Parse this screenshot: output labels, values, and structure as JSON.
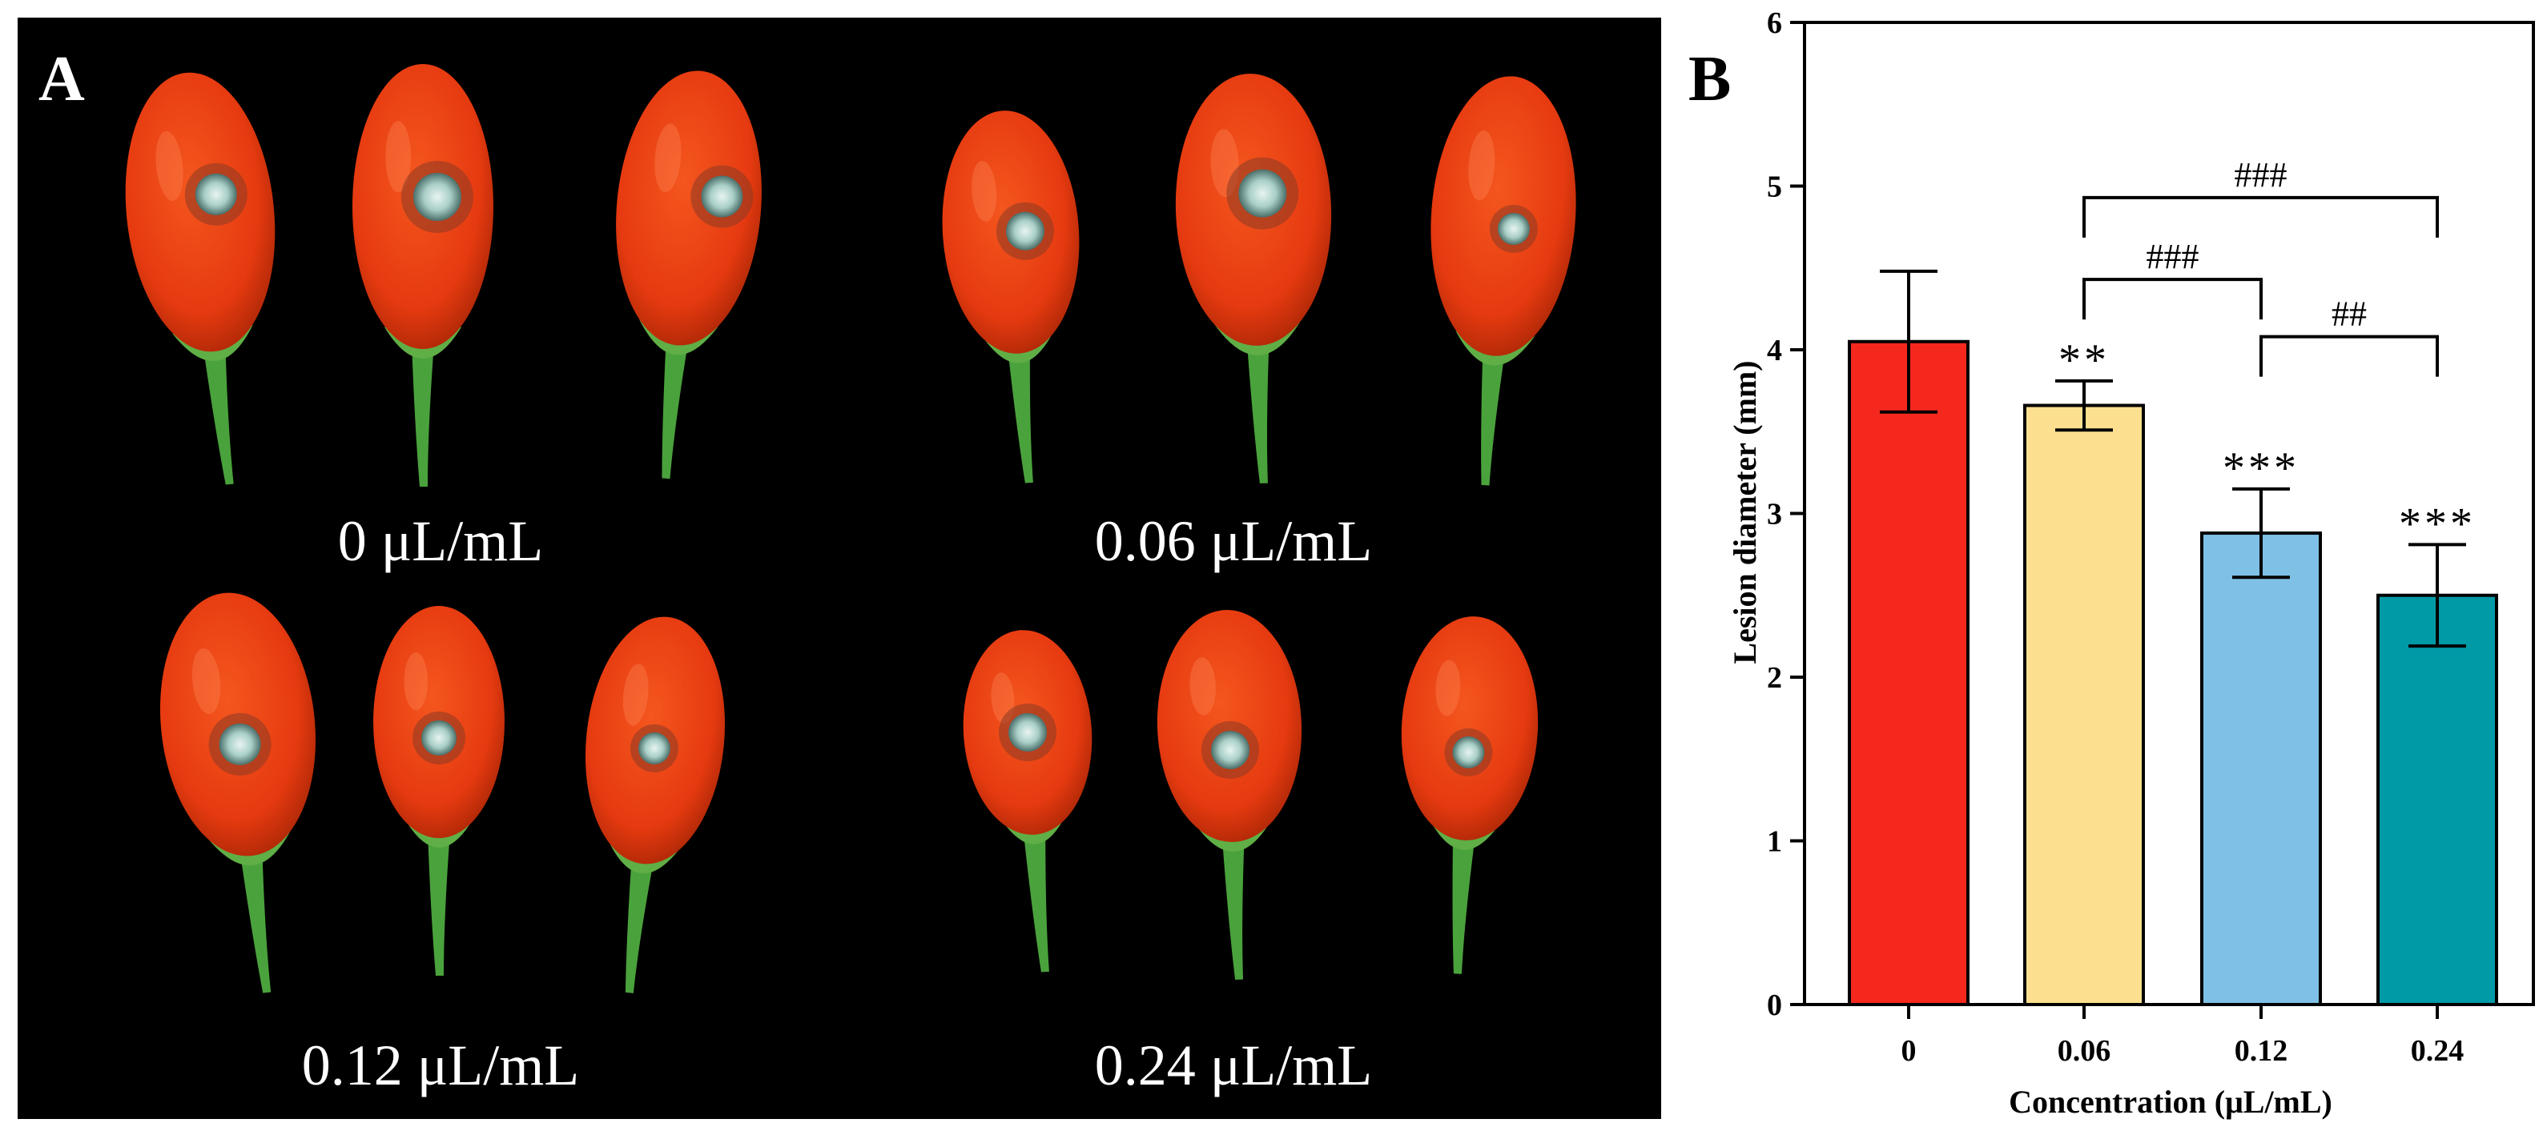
{
  "panel_a": {
    "letter": "A",
    "groups": [
      {
        "label": "0 μL/mL"
      },
      {
        "label": "0.06 μL/mL"
      },
      {
        "label": "0.12 μL/mL"
      },
      {
        "label": "0.24 μL/mL"
      }
    ],
    "colors": {
      "background": "#000000",
      "fruit": "#ea3b12",
      "fruit_dark": "#b82a08",
      "stem": "#4aa23c",
      "lesion": "#cfe3df"
    }
  },
  "panel_b": {
    "letter": "B"
  },
  "chart_data": {
    "type": "bar",
    "categories": [
      "0",
      "0.06",
      "0.12",
      "0.24"
    ],
    "values": [
      4.05,
      3.66,
      2.88,
      2.5
    ],
    "errors": [
      0.43,
      0.15,
      0.27,
      0.31
    ],
    "colors": [
      "#f5281e",
      "#fde08f",
      "#7fc0e6",
      "#009aa6"
    ],
    "xlabel": "Concentration (μL/mL)",
    "ylabel": "Lesion diameter (mm)",
    "ylim": [
      0,
      6
    ],
    "yticks": [
      "0",
      "1",
      "2",
      "3",
      "4",
      "5",
      "6"
    ],
    "significance": [
      "",
      "**",
      "***",
      "***"
    ],
    "comparisons": [
      {
        "from": 1,
        "to": 3,
        "label": "###",
        "level": 4.93
      },
      {
        "from": 1,
        "to": 2,
        "label": "###",
        "level": 4.43
      },
      {
        "from": 2,
        "to": 3,
        "label": "##",
        "level": 4.08
      }
    ],
    "grid": false
  }
}
